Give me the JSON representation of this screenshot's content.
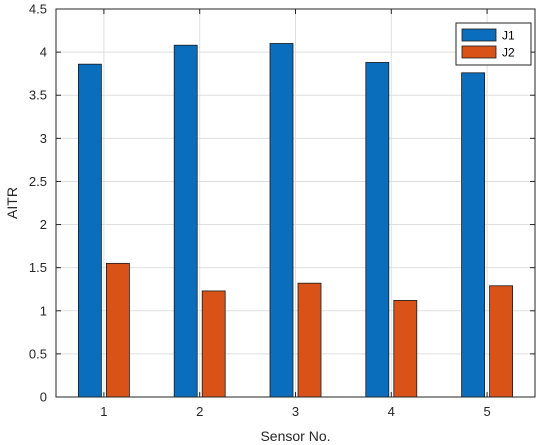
{
  "chart_data": {
    "type": "bar",
    "title": "",
    "xlabel": "Sensor No.",
    "ylabel": "AITR",
    "categories": [
      "1",
      "2",
      "3",
      "4",
      "5"
    ],
    "series": [
      {
        "name": "J1",
        "color": "#0a6ebd",
        "values": [
          3.86,
          4.08,
          4.1,
          3.88,
          3.76
        ]
      },
      {
        "name": "J2",
        "color": "#d95319",
        "values": [
          1.55,
          1.23,
          1.32,
          1.12,
          1.29
        ]
      }
    ],
    "ylim": [
      0,
      4.5
    ],
    "yticks": [
      "0",
      "0.5",
      "1",
      "1.5",
      "2",
      "2.5",
      "3",
      "3.5",
      "4",
      "4.5"
    ],
    "grid": true,
    "legend": "top-right"
  }
}
